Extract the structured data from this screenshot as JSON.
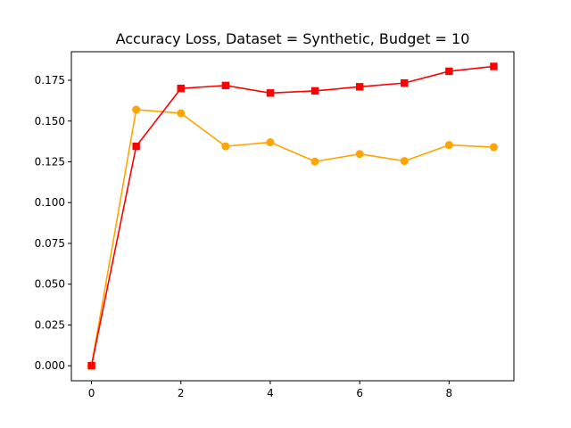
{
  "chart_data": {
    "type": "line",
    "title": "Accuracy Loss, Dataset = Synthetic, Budget = 10",
    "xlabel": "",
    "ylabel": "",
    "x": [
      0,
      1,
      2,
      3,
      4,
      5,
      6,
      7,
      8,
      9
    ],
    "xlim": [
      -0.45,
      9.45
    ],
    "ylim": [
      -0.0092,
      0.1925
    ],
    "xticks": [
      0,
      2,
      4,
      6,
      8
    ],
    "xtick_labels": [
      "0",
      "2",
      "4",
      "6",
      "8"
    ],
    "yticks": [
      0.0,
      0.025,
      0.05,
      0.075,
      0.1,
      0.125,
      0.15,
      0.175
    ],
    "ytick_labels": [
      "0.000",
      "0.025",
      "0.050",
      "0.075",
      "0.100",
      "0.125",
      "0.150",
      "0.175"
    ],
    "grid": false,
    "legend": false,
    "series": [
      {
        "marker": "circle",
        "color": "#ffa500",
        "values": [
          0.0,
          0.157,
          0.1548,
          0.1345,
          0.137,
          0.1252,
          0.1298,
          0.1255,
          0.1353,
          0.134
        ]
      },
      {
        "marker": "square",
        "color": "#ff0000",
        "values": [
          0.0,
          0.1345,
          0.17,
          0.1718,
          0.1672,
          0.1685,
          0.171,
          0.1733,
          0.1805,
          0.1835
        ]
      }
    ]
  }
}
